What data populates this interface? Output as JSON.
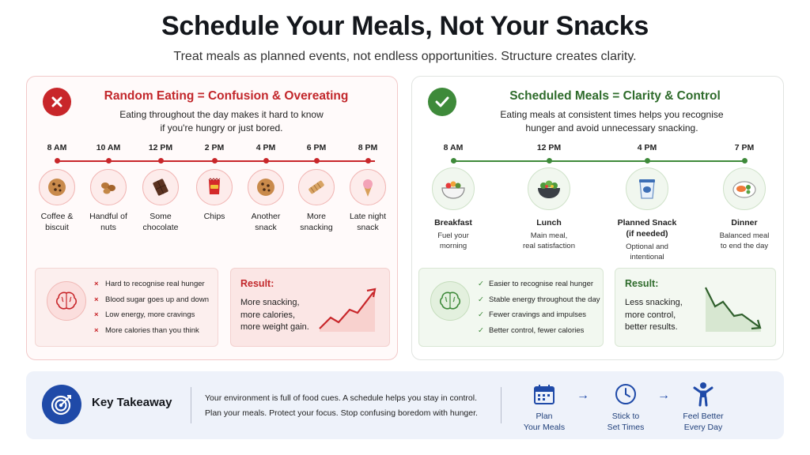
{
  "header": {
    "title": "Schedule Your Meals, Not Your Snacks",
    "subtitle": "Treat meals as planned events, not endless opportunities. Structure creates clarity."
  },
  "left_panel": {
    "title": "Random Eating = Confusion & Overeating",
    "desc_line1": "Eating throughout the day makes it hard to know",
    "desc_line2": "if you're hungry or just bored.",
    "timeline": [
      {
        "time": "8 AM",
        "label1": "Coffee &",
        "label2": "biscuit",
        "icon": "cookie-icon"
      },
      {
        "time": "10 AM",
        "label1": "Handful of",
        "label2": "nuts",
        "icon": "nuts-icon"
      },
      {
        "time": "12 PM",
        "label1": "Some",
        "label2": "chocolate",
        "icon": "chocolate-icon"
      },
      {
        "time": "2 PM",
        "label1": "Chips",
        "label2": "",
        "icon": "chips-icon"
      },
      {
        "time": "4 PM",
        "label1": "Another",
        "label2": "snack",
        "icon": "cookie-icon"
      },
      {
        "time": "6 PM",
        "label1": "More",
        "label2": "snacking",
        "icon": "bar-icon"
      },
      {
        "time": "8 PM",
        "label1": "Late night",
        "label2": "snack",
        "icon": "ice-cream-icon"
      }
    ],
    "bullets": [
      "Hard to recognise real hunger",
      "Blood sugar goes up and down",
      "Low energy, more cravings",
      "More calories than you think"
    ],
    "bullet_mark": "×",
    "result_title": "Result:",
    "result_lines": [
      "More snacking,",
      "more calories,",
      "more weight gain."
    ],
    "color": "#c8262a"
  },
  "right_panel": {
    "title": "Scheduled Meals = Clarity & Control",
    "desc_line1": "Eating meals at consistent times helps you recognise",
    "desc_line2": "hunger and avoid unnecessary snacking.",
    "timeline": [
      {
        "time": "8 AM",
        "label1": "Breakfast",
        "label2": "",
        "sub1": "Fuel your",
        "sub2": "morning",
        "icon": "breakfast-bowl-icon"
      },
      {
        "time": "12 PM",
        "label1": "Lunch",
        "label2": "",
        "sub1": "Main meal,",
        "sub2": "real satisfaction",
        "icon": "salad-bowl-icon"
      },
      {
        "time": "4 PM",
        "label1": "Planned Snack",
        "label2": "(if needed)",
        "sub1": "Optional and",
        "sub2": "intentional",
        "icon": "yogurt-icon"
      },
      {
        "time": "7 PM",
        "label1": "Dinner",
        "label2": "",
        "sub1": "Balanced meal",
        "sub2": "to end the day",
        "icon": "dinner-plate-icon"
      }
    ],
    "bullets": [
      "Easier to recognise real hunger",
      "Stable energy throughout the day",
      "Fewer cravings and impulses",
      "Better control, fewer calories"
    ],
    "bullet_mark": "✓",
    "result_title": "Result:",
    "result_lines": [
      "Less snacking,",
      "more control,",
      "better results."
    ],
    "color": "#3e8a3a"
  },
  "takeaway": {
    "title": "Key Takeaway",
    "line1": "Your environment is full of food cues. A schedule helps you stay in control.",
    "line2": "Plan your meals. Protect your focus. Stop confusing boredom with hunger.",
    "steps": [
      {
        "label1": "Plan",
        "label2": "Your Meals",
        "icon": "calendar-icon"
      },
      {
        "label1": "Stick to",
        "label2": "Set Times",
        "icon": "clock-icon"
      },
      {
        "label1": "Feel Better",
        "label2": "Every Day",
        "icon": "person-icon"
      }
    ],
    "arrow": "→",
    "accent": "#1f4aa8"
  }
}
